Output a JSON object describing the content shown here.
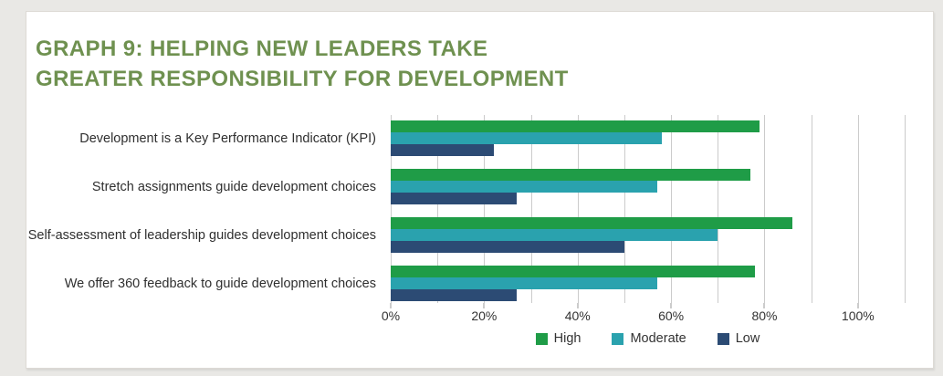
{
  "page": {
    "background": "#e9e8e5",
    "card_background": "#ffffff",
    "card_border": "#dddad5"
  },
  "header": {
    "title_line1": "GRAPH 9: HELPING NEW LEADERS TAKE",
    "title_line2": "GREATER RESPONSIBILITY FOR DEVELOPMENT",
    "title_color": "#6f9150"
  },
  "chart_data": {
    "type": "bar",
    "orientation": "horizontal",
    "title": "GRAPH 9: HELPING NEW LEADERS TAKE GREATER RESPONSIBILITY FOR DEVELOPMENT",
    "categories": [
      "Development is a Key Performance Indicator (KPI)",
      "Stretch assignments guide development choices",
      "Self-assessment of leadership guides development choices",
      "We offer 360 feedback to guide development choices"
    ],
    "series": [
      {
        "name": "High",
        "color": "#1f9c47",
        "values": [
          79,
          77,
          86,
          78
        ]
      },
      {
        "name": "Moderate",
        "color": "#2aa2ae",
        "values": [
          58,
          57,
          70,
          57
        ]
      },
      {
        "name": "Low",
        "color": "#2c4b74",
        "values": [
          22,
          27,
          50,
          27
        ]
      }
    ],
    "x_ticks": [
      {
        "value": 0,
        "label": "0%"
      },
      {
        "value": 20,
        "label": "20%"
      },
      {
        "value": 40,
        "label": "40%"
      },
      {
        "value": 60,
        "label": "60%"
      },
      {
        "value": 80,
        "label": "80%"
      },
      {
        "value": 100,
        "label": "100%"
      }
    ],
    "xlim": [
      0,
      110
    ],
    "grid_step": 10,
    "grid": true,
    "legend_position": "bottom",
    "legend": [
      "High",
      "Moderate",
      "Low"
    ]
  }
}
